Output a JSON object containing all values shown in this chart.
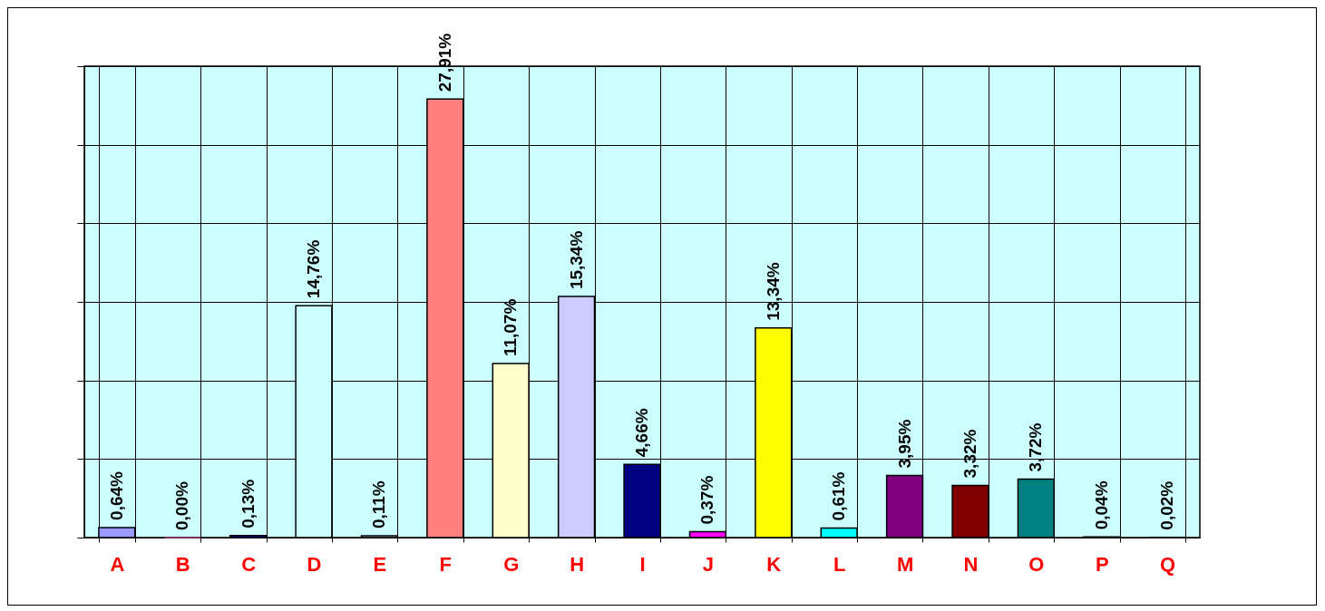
{
  "chart_data": {
    "type": "bar",
    "categories": [
      "A",
      "B",
      "C",
      "D",
      "E",
      "F",
      "G",
      "H",
      "I",
      "J",
      "K",
      "L",
      "M",
      "N",
      "O",
      "P",
      "Q"
    ],
    "values": [
      0.64,
      0.0,
      0.13,
      14.76,
      0.11,
      27.91,
      11.07,
      15.34,
      4.66,
      0.37,
      13.34,
      0.61,
      3.95,
      3.32,
      3.72,
      0.04,
      0.02
    ],
    "value_labels": [
      "0,64%",
      "0,00%",
      "0,13%",
      "14,76%",
      "0,11%",
      "27,91%",
      "11,07%",
      "15,34%",
      "4,66%",
      "0,37%",
      "13,34%",
      "0,61%",
      "3,95%",
      "3,32%",
      "3,72%",
      "0,04%",
      "0,02%"
    ],
    "colors": [
      "#9999ff",
      "#993366",
      "#0000cc",
      "#ccffff",
      "#ccccff",
      "#ff8080",
      "#ffffcc",
      "#ccccff",
      "#000080",
      "#ff00ff",
      "#ffff00",
      "#00ffff",
      "#800080",
      "#800000",
      "#008080",
      "#0000ff",
      "#00ccff"
    ],
    "ylim": [
      0,
      30
    ],
    "yticks": [
      {
        "value": 0,
        "label": null
      },
      {
        "value": 5,
        "label": null
      },
      {
        "value": 10,
        "label": null
      },
      {
        "value": 15,
        "label": null
      },
      {
        "value": 20,
        "label": null
      },
      {
        "value": 25,
        "label": null
      },
      {
        "value": 30,
        "label": null
      }
    ],
    "grid": true
  }
}
